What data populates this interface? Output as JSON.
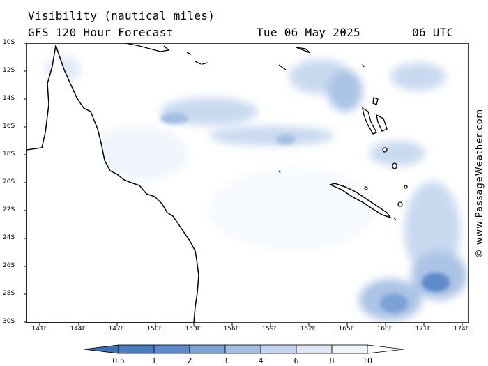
{
  "title": "Visibility (nautical miles)",
  "subtitle": "GFS 120 Hour Forecast",
  "date": "Tue 06 May 2025",
  "time": "06 UTC",
  "credit": "© www.PassageWeather.com",
  "lat_labels": [
    "10S",
    "12S",
    "14S",
    "16S",
    "18S",
    "20S",
    "22S",
    "24S",
    "26S",
    "28S",
    "30S"
  ],
  "lon_labels": [
    "141E",
    "144E",
    "147E",
    "150E",
    "153E",
    "156E",
    "159E",
    "162E",
    "165E",
    "168E",
    "171E",
    "174E"
  ],
  "legend": {
    "labels": [
      "0.5",
      "1",
      "2",
      "3",
      "4",
      "6",
      "8",
      "10"
    ],
    "colors": [
      "#4a7cc0",
      "#5d8bcb",
      "#7ea2d6",
      "#a3bde3",
      "#c3d5ee",
      "#dde7f6",
      "#eff4fb"
    ]
  },
  "colors": {
    "land": "#ffffff",
    "coast": "#000000",
    "frame": "#000000"
  }
}
